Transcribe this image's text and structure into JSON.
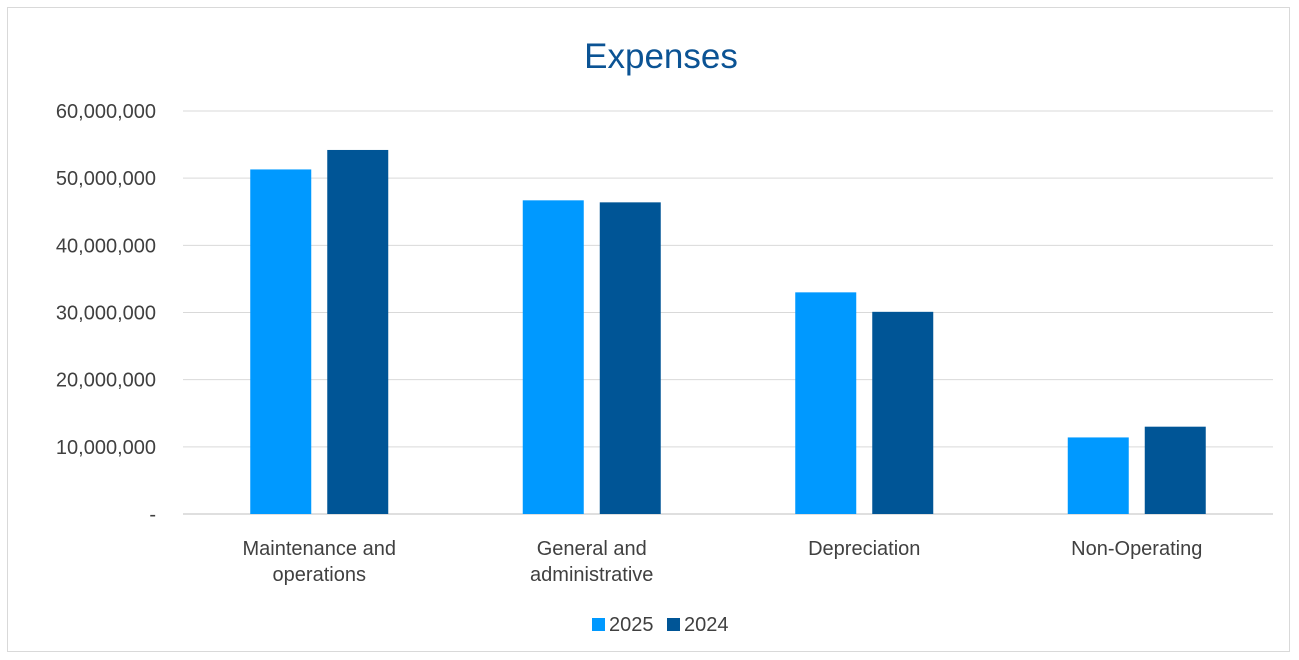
{
  "chart_data": {
    "type": "bar",
    "title": "Expenses",
    "categories": [
      [
        "Maintenance and",
        "operations"
      ],
      [
        "General and",
        "administrative"
      ],
      [
        "Depreciation"
      ],
      [
        "Non-Operating"
      ]
    ],
    "series": [
      {
        "name": "2025",
        "color": "#0099ff",
        "values": [
          51300000,
          46700000,
          33000000,
          11400000
        ]
      },
      {
        "name": "2024",
        "color": "#005596",
        "values": [
          54200000,
          46400000,
          30100000,
          13000000
        ]
      }
    ],
    "ylim": [
      0,
      60000000
    ],
    "yticks": [
      {
        "value": 0,
        "label": "-"
      },
      {
        "value": 10000000,
        "label": "10,000,000"
      },
      {
        "value": 20000000,
        "label": "20,000,000"
      },
      {
        "value": 30000000,
        "label": "30,000,000"
      },
      {
        "value": 40000000,
        "label": "40,000,000"
      },
      {
        "value": 50000000,
        "label": "50,000,000"
      },
      {
        "value": 60000000,
        "label": "60,000,000"
      }
    ],
    "grid": true,
    "legend_position": "bottom"
  }
}
